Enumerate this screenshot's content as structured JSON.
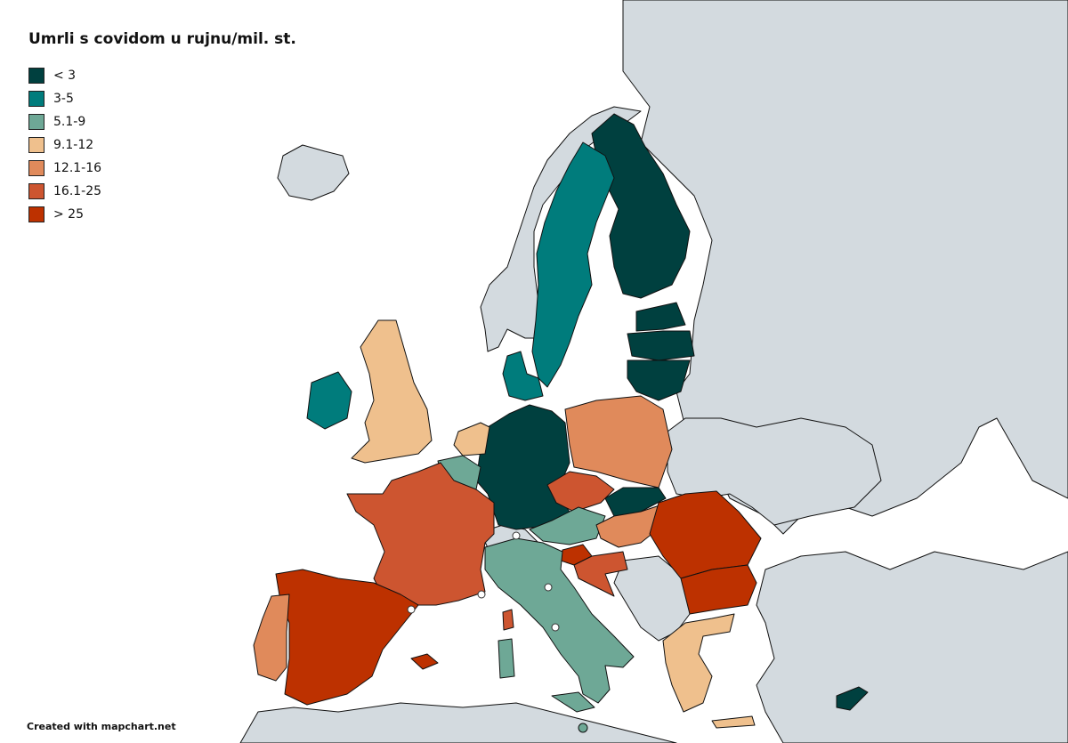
{
  "title": "Umrli s covidom u rujnu/mil. st.",
  "credit": "Created with mapchart.net",
  "legend": [
    {
      "label": "< 3",
      "color": "#00403f"
    },
    {
      "label": "3-5",
      "color": "#007c7c"
    },
    {
      "label": "5.1-9",
      "color": "#6ea896"
    },
    {
      "label": "9.1-12",
      "color": "#efc08d"
    },
    {
      "label": "12.1-16",
      "color": "#e08a5b"
    },
    {
      "label": "16.1-25",
      "color": "#cd5530"
    },
    {
      "label": "> 25",
      "color": "#bd3100"
    }
  ],
  "colors": {
    "water": "#ffffff",
    "non_member_land": "#d3dadf",
    "border": "#111111"
  },
  "countries": [
    {
      "name": "Finland",
      "bin": 0
    },
    {
      "name": "Estonia",
      "bin": 0
    },
    {
      "name": "Latvia",
      "bin": 0
    },
    {
      "name": "Lithuania",
      "bin": 0
    },
    {
      "name": "Germany",
      "bin": 0
    },
    {
      "name": "Slovakia",
      "bin": 0
    },
    {
      "name": "Cyprus",
      "bin": 0
    },
    {
      "name": "Sweden",
      "bin": 1
    },
    {
      "name": "Denmark",
      "bin": 1
    },
    {
      "name": "Ireland",
      "bin": 1
    },
    {
      "name": "Belgium",
      "bin": 2
    },
    {
      "name": "Austria",
      "bin": 2
    },
    {
      "name": "Italy",
      "bin": 2
    },
    {
      "name": "Malta",
      "bin": 2
    },
    {
      "name": "United Kingdom",
      "bin": 3
    },
    {
      "name": "Netherlands",
      "bin": 3
    },
    {
      "name": "Greece",
      "bin": 3
    },
    {
      "name": "Poland",
      "bin": 4
    },
    {
      "name": "Portugal",
      "bin": 4
    },
    {
      "name": "Hungary",
      "bin": 4
    },
    {
      "name": "France",
      "bin": 5
    },
    {
      "name": "Czechia",
      "bin": 5
    },
    {
      "name": "Croatia",
      "bin": 5
    },
    {
      "name": "Spain",
      "bin": 6
    },
    {
      "name": "Romania",
      "bin": 6
    },
    {
      "name": "Bulgaria",
      "bin": 6
    },
    {
      "name": "Slovenia",
      "bin": 6
    }
  ]
}
